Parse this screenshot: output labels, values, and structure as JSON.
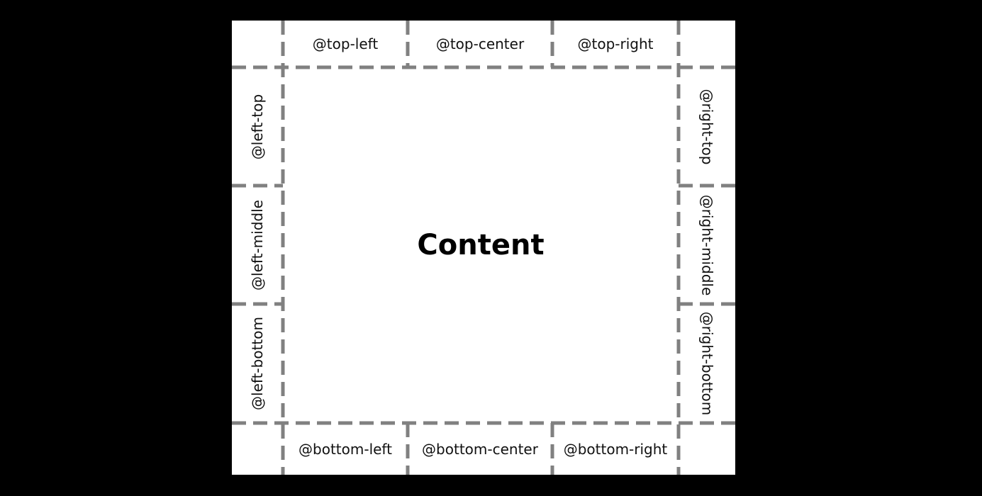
{
  "colors": {
    "background": "#000000",
    "page": "#ffffff",
    "guide": "#808080",
    "text": "#111111"
  },
  "margin_boxes": {
    "top_left": "@top-left",
    "top_center": "@top-center",
    "top_right": "@top-right",
    "left_top": "@left-top",
    "left_middle": "@left-middle",
    "left_bottom": "@left-bottom",
    "right_top": "@right-top",
    "right_middle": "@right-middle",
    "right_bottom": "@right-bottom",
    "bottom_left": "@bottom-left",
    "bottom_center": "@bottom-center",
    "bottom_right": "@bottom-right"
  },
  "content_label": "Content"
}
